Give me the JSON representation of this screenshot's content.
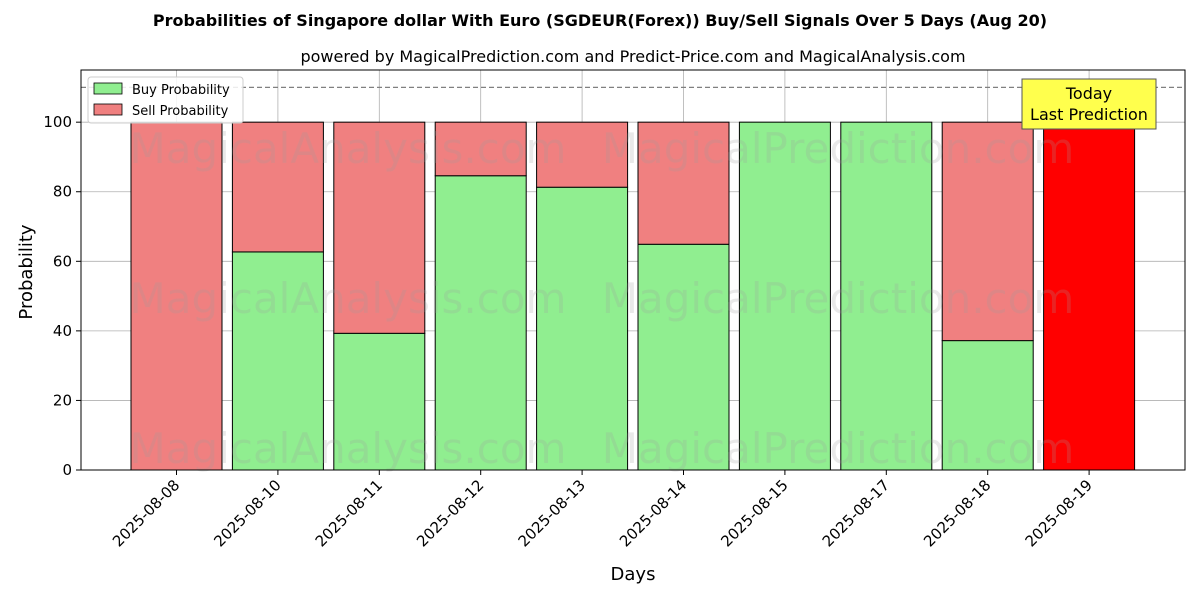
{
  "chart_data": {
    "type": "bar",
    "stacked": true,
    "title": "Probabilities of Singapore dollar With Euro (SGDEUR(Forex)) Buy/Sell Signals Over 5 Days (Aug 20)",
    "subtitle": "powered by MagicalPrediction.com and Predict-Price.com and MagicalAnalysis.com",
    "xlabel": "Days",
    "ylabel": "Probability",
    "ylim": [
      0,
      115
    ],
    "yticks": [
      0,
      20,
      40,
      60,
      80,
      100
    ],
    "grid": true,
    "reference_line": 110,
    "legend_position": "top-left",
    "categories": [
      "2025-08-08",
      "2025-08-10",
      "2025-08-11",
      "2025-08-12",
      "2025-08-13",
      "2025-08-14",
      "2025-08-15",
      "2025-08-17",
      "2025-08-18",
      "2025-08-19"
    ],
    "series": [
      {
        "name": "Buy Probability",
        "color": "#90ee90",
        "values": [
          0,
          62.7,
          39.3,
          84.6,
          81.3,
          64.9,
          100,
          100,
          37.2,
          0
        ]
      },
      {
        "name": "Sell Probability",
        "color": "#f08080",
        "values": [
          100,
          37.3,
          60.7,
          15.4,
          18.7,
          35.1,
          0,
          0,
          62.8,
          100
        ]
      }
    ],
    "highlight": {
      "index": 9,
      "color": "#ff0000"
    },
    "annotation": {
      "line1": "Today",
      "line2": "Last Prediction",
      "background": "#ffff4d"
    },
    "watermarks": [
      "MagicalAnalysis.com",
      "MagicalPrediction.com"
    ]
  }
}
